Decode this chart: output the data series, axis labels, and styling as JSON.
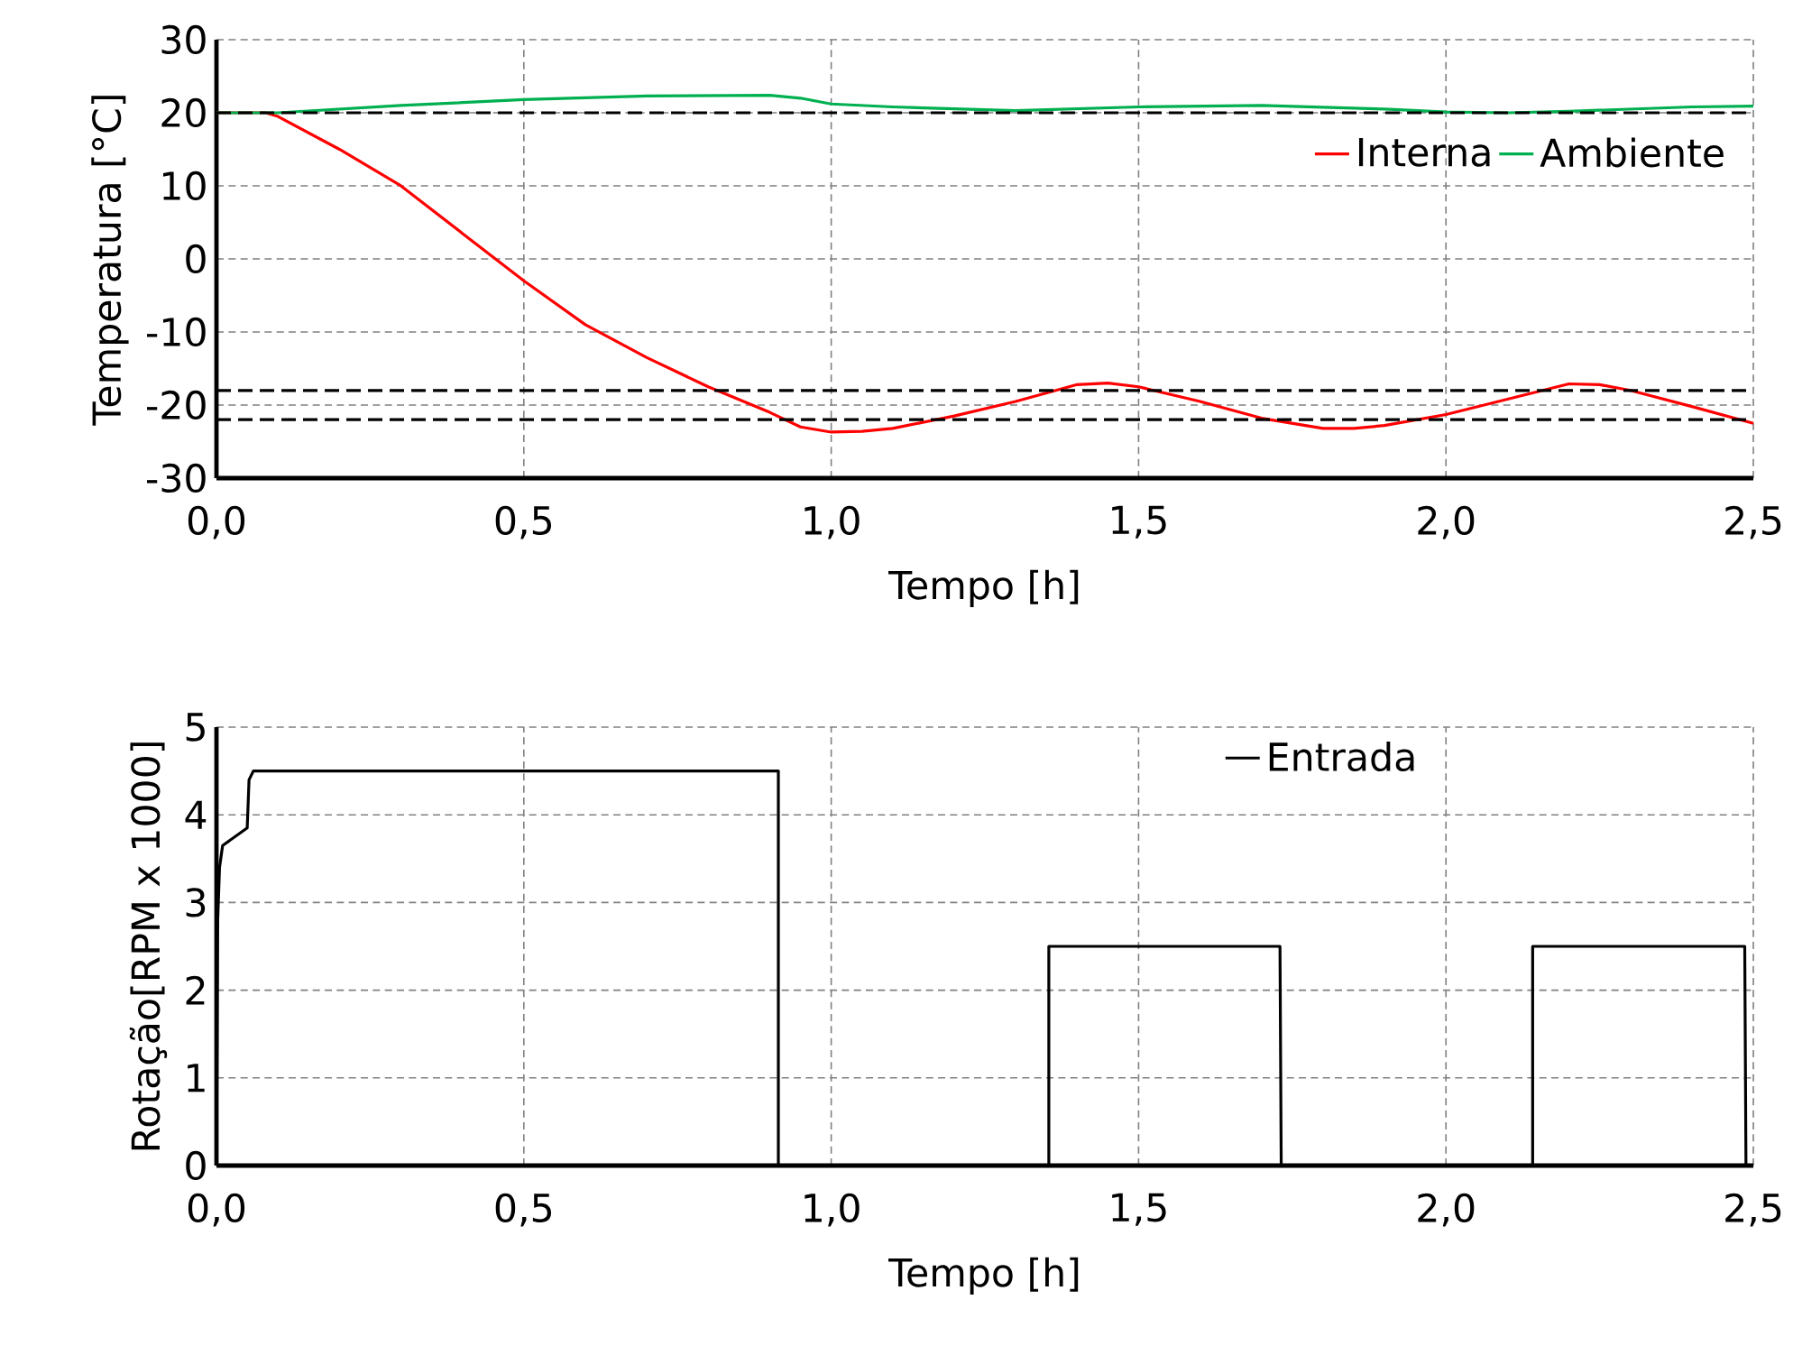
{
  "chart_data": [
    {
      "type": "line",
      "xlabel": "Tempo [h]",
      "ylabel": "Temperatura [°C]",
      "series": [
        {
          "name": "Interna",
          "color": "#ff0000",
          "x": [
            0,
            0.05,
            0.08,
            0.1,
            0.2,
            0.3,
            0.4,
            0.5,
            0.6,
            0.7,
            0.8,
            0.9,
            0.95,
            1.0,
            1.05,
            1.1,
            1.2,
            1.3,
            1.4,
            1.45,
            1.5,
            1.6,
            1.7,
            1.8,
            1.85,
            1.9,
            2.0,
            2.1,
            2.2,
            2.25,
            2.3,
            2.4,
            2.5
          ],
          "values": [
            20,
            null,
            20,
            19.5,
            15,
            10,
            3.5,
            -3,
            -9,
            -13.5,
            -17.5,
            -21,
            -23,
            -23.7,
            -23.6,
            -23.2,
            -21.5,
            -19.5,
            -17.2,
            -17,
            -17.5,
            -19.5,
            -21.8,
            -23.2,
            -23.2,
            -22.8,
            -21.3,
            -19.2,
            -17.1,
            -17.2,
            -18,
            -20.2,
            -22.5
          ]
        },
        {
          "name": "Ambiente",
          "color": "#00b050",
          "x": [
            0,
            0.1,
            0.3,
            0.5,
            0.7,
            0.9,
            0.95,
            1.0,
            1.1,
            1.3,
            1.5,
            1.7,
            1.9,
            2.0,
            2.1,
            2.2,
            2.4,
            2.5
          ],
          "values": [
            20,
            20,
            21,
            21.8,
            22.3,
            22.4,
            22,
            21.2,
            20.8,
            20.3,
            20.8,
            21,
            20.5,
            20.1,
            20,
            20.2,
            20.8,
            20.9
          ]
        }
      ],
      "xlim": [
        0,
        2.5
      ],
      "ylim": [
        -30,
        30
      ],
      "xticks": [
        {
          "value": 0,
          "label": "0,0"
        },
        {
          "value": 0.5,
          "label": "0,5"
        },
        {
          "value": 1,
          "label": "1,0"
        },
        {
          "value": 1.5,
          "label": "1,5"
        },
        {
          "value": 2,
          "label": "2,0"
        },
        {
          "value": 2.5,
          "label": "2,5"
        }
      ],
      "yticks": [
        -30,
        -20,
        -10,
        0,
        10,
        20,
        30
      ],
      "ref_lines": [
        {
          "axis": "y",
          "value": 20,
          "color": "#000000",
          "line_style": "dashed"
        },
        {
          "axis": "y",
          "value": -18,
          "color": "#000000",
          "line_style": "dashed"
        },
        {
          "axis": "y",
          "value": -22,
          "color": "#000000",
          "line_style": "dashed"
        }
      ],
      "grid": true,
      "legend": "top right",
      "line_style": "solid"
    },
    {
      "type": "line",
      "xlabel": "Tempo [h]",
      "ylabel": "Rotação[RPM x 1000]",
      "series": [
        {
          "name": "Entrada",
          "color": "#000000",
          "x": [
            0,
            0.002,
            0.005,
            0.01,
            0.03,
            0.05,
            0.053,
            0.06,
            0.1,
            0.5,
            0.91,
            0.914,
            0.914,
            1.354,
            1.354,
            1.73,
            1.732,
            2.141,
            2.141,
            2.486,
            2.488,
            2.5
          ],
          "values": [
            0,
            2.8,
            3.4,
            3.65,
            3.75,
            3.85,
            4.4,
            4.5,
            4.5,
            4.5,
            4.5,
            4.5,
            0,
            0,
            2.5,
            2.5,
            0,
            0,
            2.5,
            2.5,
            0,
            0
          ]
        }
      ],
      "xlim": [
        0,
        2.5
      ],
      "ylim": [
        0,
        5
      ],
      "xticks": [
        {
          "value": 0,
          "label": "0,0"
        },
        {
          "value": 0.5,
          "label": "0,5"
        },
        {
          "value": 1,
          "label": "1,0"
        },
        {
          "value": 1.5,
          "label": "1,5"
        },
        {
          "value": 2,
          "label": "2,0"
        },
        {
          "value": 2.5,
          "label": "2,5"
        }
      ],
      "yticks": [
        0,
        1,
        2,
        3,
        4,
        5
      ],
      "grid": true,
      "legend": "top",
      "line_style": "solid"
    }
  ]
}
